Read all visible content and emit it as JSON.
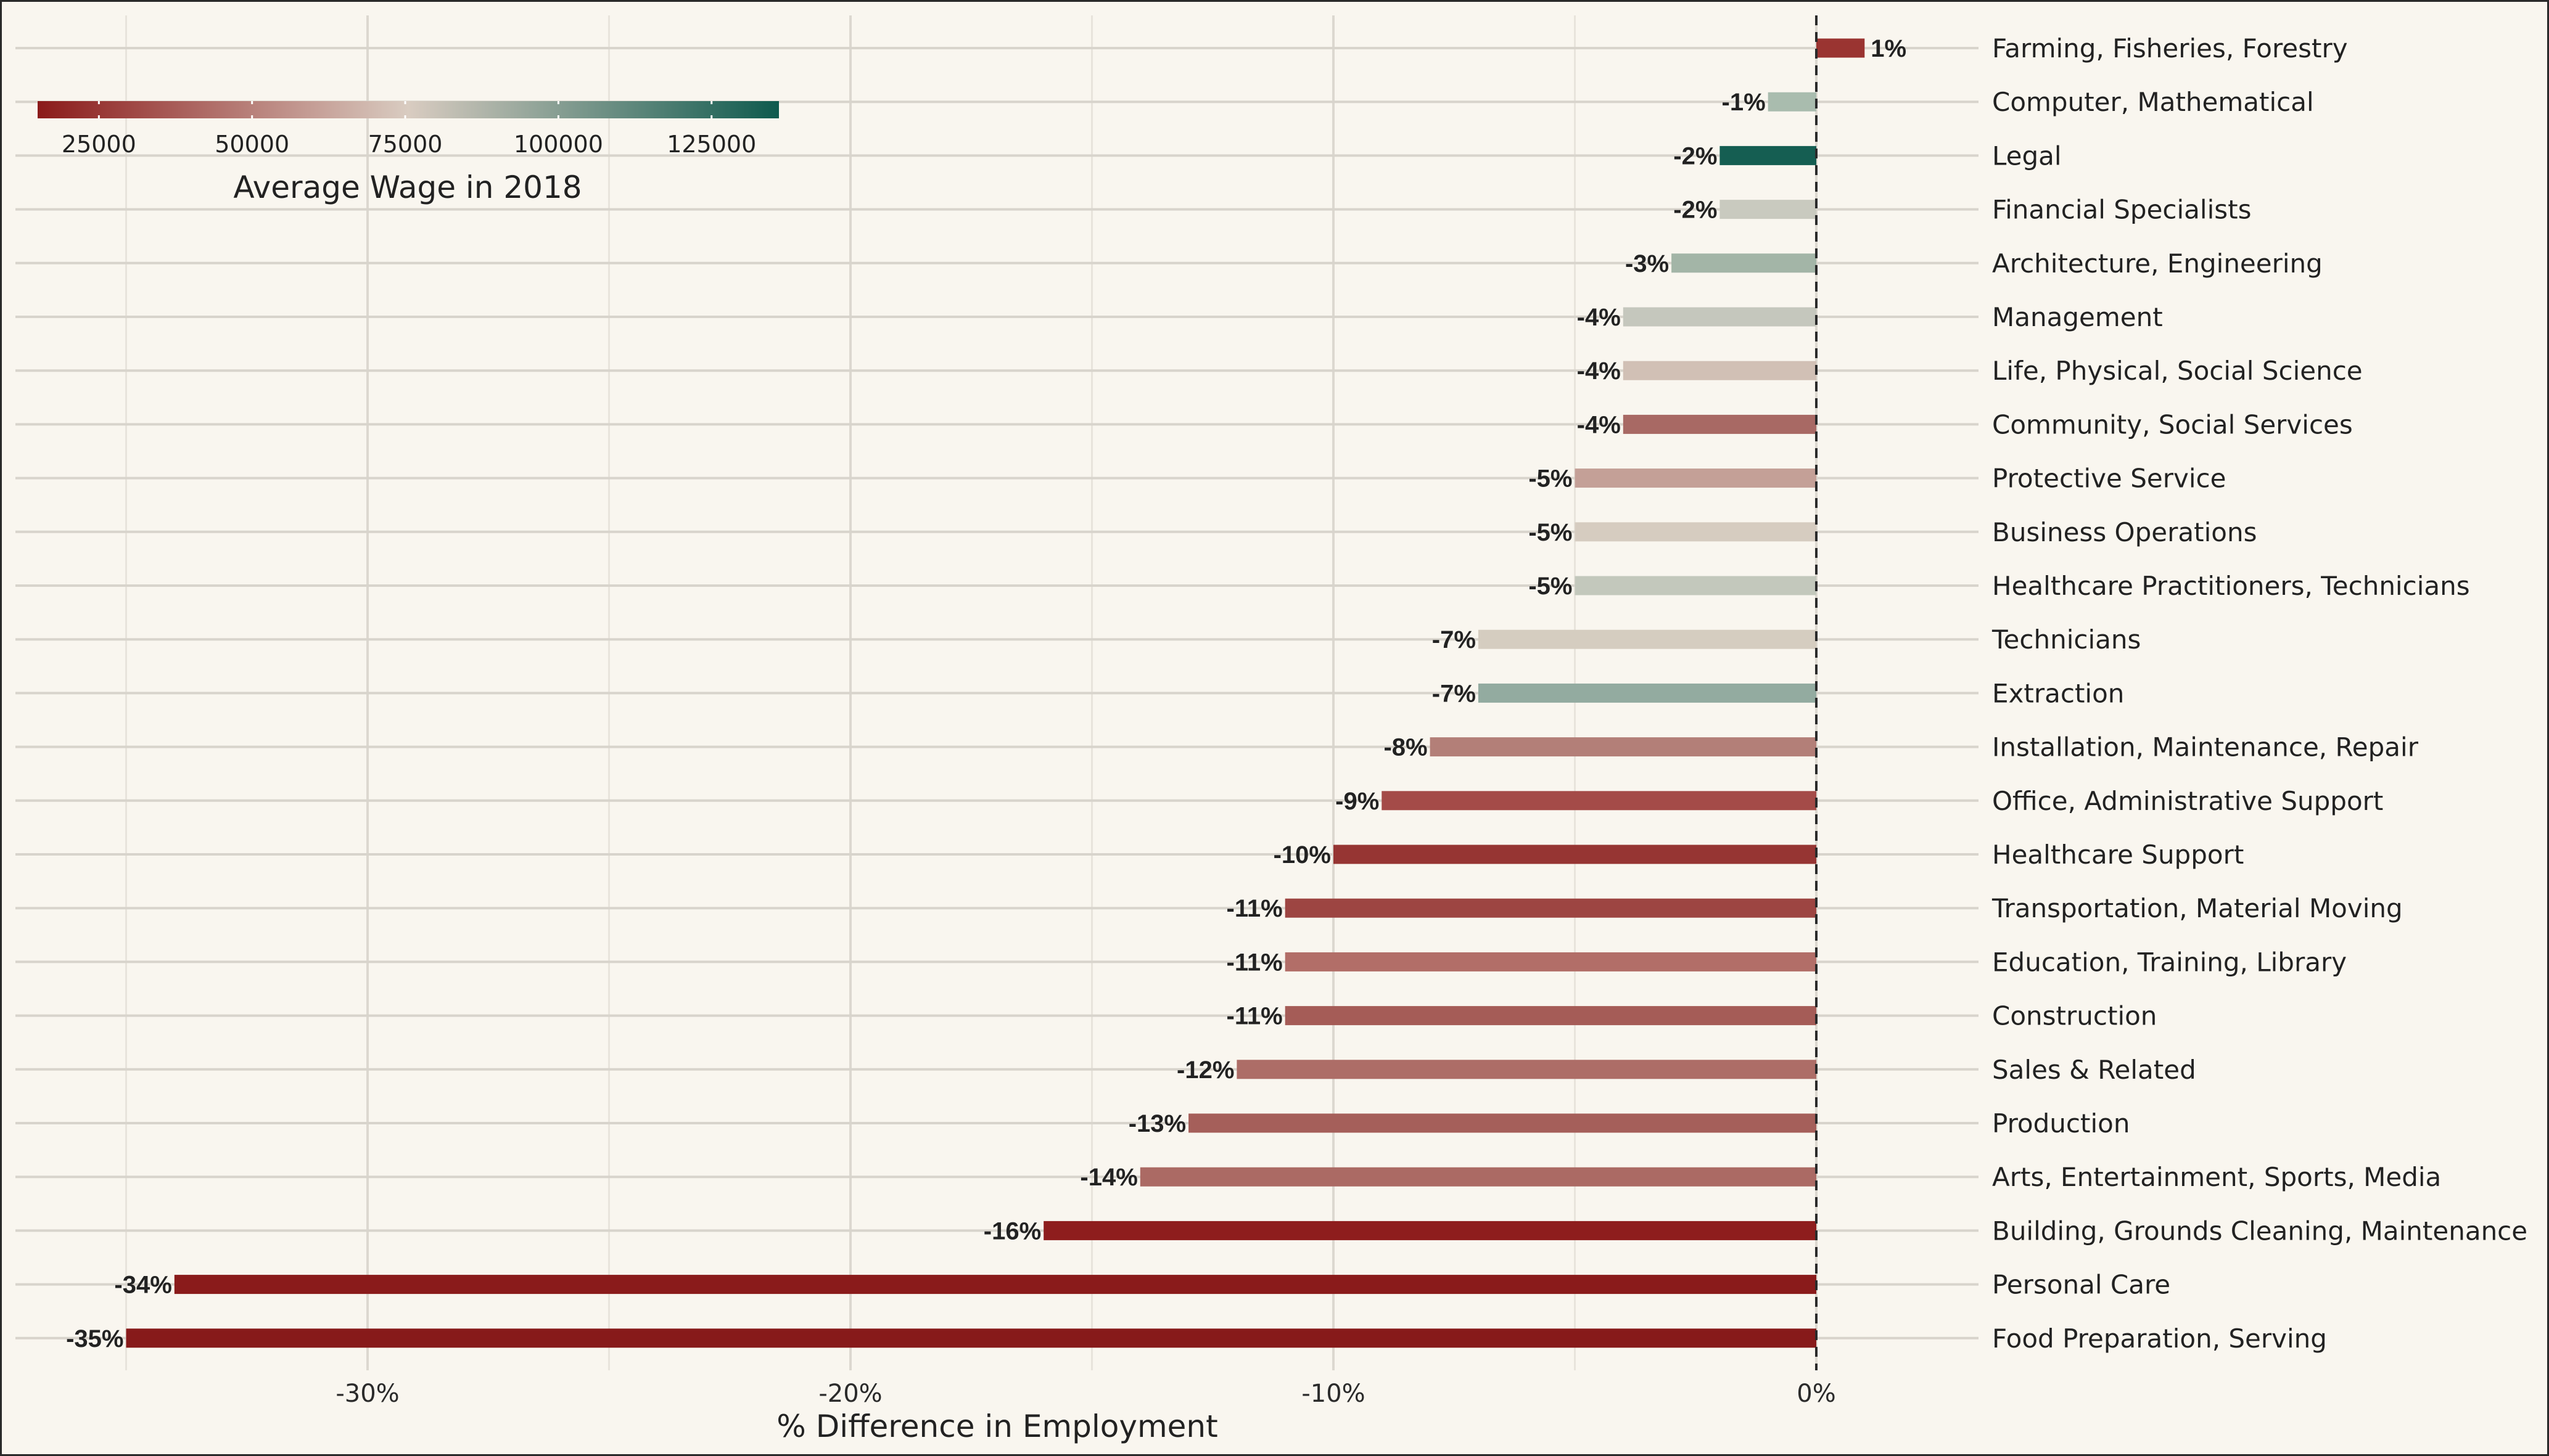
{
  "chart_data": {
    "type": "bar",
    "orientation": "horizontal",
    "x_axis_label": "% Difference in Employment",
    "xlim": [
      -36.5,
      0
    ],
    "x_ticks": [
      {
        "value": -30,
        "label": "-30%"
      },
      {
        "value": -20,
        "label": "-20%"
      },
      {
        "value": -10,
        "label": "-10%"
      },
      {
        "value": 0,
        "label": "0%"
      }
    ],
    "grid": true,
    "legend": {
      "title": "Average Wage in 2018",
      "position": "top-left",
      "range": [
        15000,
        136000
      ],
      "ticks": [
        25000,
        50000,
        75000,
        100000,
        125000
      ],
      "colors": [
        "#8b1a1a",
        "#d9ccc1",
        "#0e5a4e"
      ]
    },
    "colors": {
      "negative_end": "#8b1a1a",
      "mid": "#d9ccc1",
      "positive_end": "#0e5a4e"
    },
    "categories": [
      {
        "name": "Farming, Fisheries, Forestry",
        "value": 1,
        "label": "1%",
        "color": "#9a3431"
      },
      {
        "name": "Computer, Mathematical",
        "value": -1,
        "label": "-1%",
        "color": "#a9bcae"
      },
      {
        "name": "Legal",
        "value": -2,
        "label": "-2%",
        "color": "#155e52"
      },
      {
        "name": "Financial Specialists",
        "value": -2,
        "label": "-2%",
        "color": "#c9cabf"
      },
      {
        "name": "Architecture, Engineering",
        "value": -3,
        "label": "-3%",
        "color": "#a3b5a7"
      },
      {
        "name": "Management",
        "value": -4,
        "label": "-4%",
        "color": "#c5c7bd"
      },
      {
        "name": "Life, Physical, Social Science",
        "value": -4,
        "label": "-4%",
        "color": "#d1c0b5"
      },
      {
        "name": "Community, Social Services",
        "value": -4,
        "label": "-4%",
        "color": "#a86964"
      },
      {
        "name": "Protective Service",
        "value": -5,
        "label": "-5%",
        "color": "#c4a097"
      },
      {
        "name": "Business Operations",
        "value": -5,
        "label": "-5%",
        "color": "#d6ccc0"
      },
      {
        "name": "Healthcare Practitioners, Technicians",
        "value": -5,
        "label": "-5%",
        "color": "#c3c8bc"
      },
      {
        "name": "Technicians",
        "value": -7,
        "label": "-7%",
        "color": "#d5cdc0"
      },
      {
        "name": "Extraction",
        "value": -7,
        "label": "-7%",
        "color": "#93aba0"
      },
      {
        "name": "Installation, Maintenance, Repair",
        "value": -8,
        "label": "-8%",
        "color": "#b37f78"
      },
      {
        "name": "Office, Administrative Support",
        "value": -9,
        "label": "-9%",
        "color": "#a44b48"
      },
      {
        "name": "Healthcare Support",
        "value": -10,
        "label": "-10%",
        "color": "#963533"
      },
      {
        "name": "Transportation, Material Moving",
        "value": -11,
        "label": "-11%",
        "color": "#9d4542"
      },
      {
        "name": "Education, Training, Library",
        "value": -11,
        "label": "-11%",
        "color": "#b26e68"
      },
      {
        "name": "Construction",
        "value": -11,
        "label": "-11%",
        "color": "#a55c57"
      },
      {
        "name": "Sales & Related",
        "value": -12,
        "label": "-12%",
        "color": "#ad6d67"
      },
      {
        "name": "Production",
        "value": -13,
        "label": "-13%",
        "color": "#a55f5a"
      },
      {
        "name": "Arts, Entertainment, Sports, Media",
        "value": -14,
        "label": "-14%",
        "color": "#ab6a64"
      },
      {
        "name": "Building, Grounds Cleaning, Maintenance",
        "value": -16,
        "label": "-16%",
        "color": "#8e1d1d"
      },
      {
        "name": "Personal Care",
        "value": -34,
        "label": "-34%",
        "color": "#8a1b1b"
      },
      {
        "name": "Food Preparation, Serving",
        "value": -35,
        "label": "-35%",
        "color": "#871a1a"
      }
    ]
  }
}
